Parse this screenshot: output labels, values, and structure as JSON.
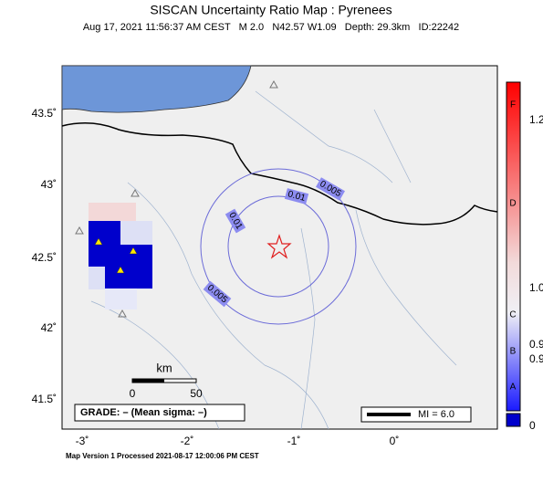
{
  "header": {
    "title": "SISCAN Uncertainty Ratio Map : Pyrenees",
    "subtitle": "Aug 17, 2021 11:56:37 AM CEST   M 2.0   N42.57 W1.09   Depth: 29.3km   ID:22242"
  },
  "map": {
    "lat_labels": [
      "43.5˚",
      "43˚",
      "42.5˚",
      "42˚",
      "41.5˚"
    ],
    "lon_labels": [
      "-3˚",
      "-2˚",
      "-1˚",
      "0˚"
    ],
    "contour_labels": [
      "0.005",
      "0.01",
      "0.01",
      "0.005"
    ],
    "scale": {
      "unit": "km",
      "start": "0",
      "end": "50"
    },
    "grade": "GRADE: – (Mean sigma: –)",
    "magnitude": "MI = 6.0"
  },
  "colorbar": {
    "letters": [
      "F",
      "D",
      "C",
      "B",
      "A"
    ],
    "values": [
      "1.2",
      "1.0",
      "0.9",
      "0.9",
      "0"
    ]
  },
  "footer": "Map Version 1 Processed 2021-08-17 12:00:06 PM CEST"
}
